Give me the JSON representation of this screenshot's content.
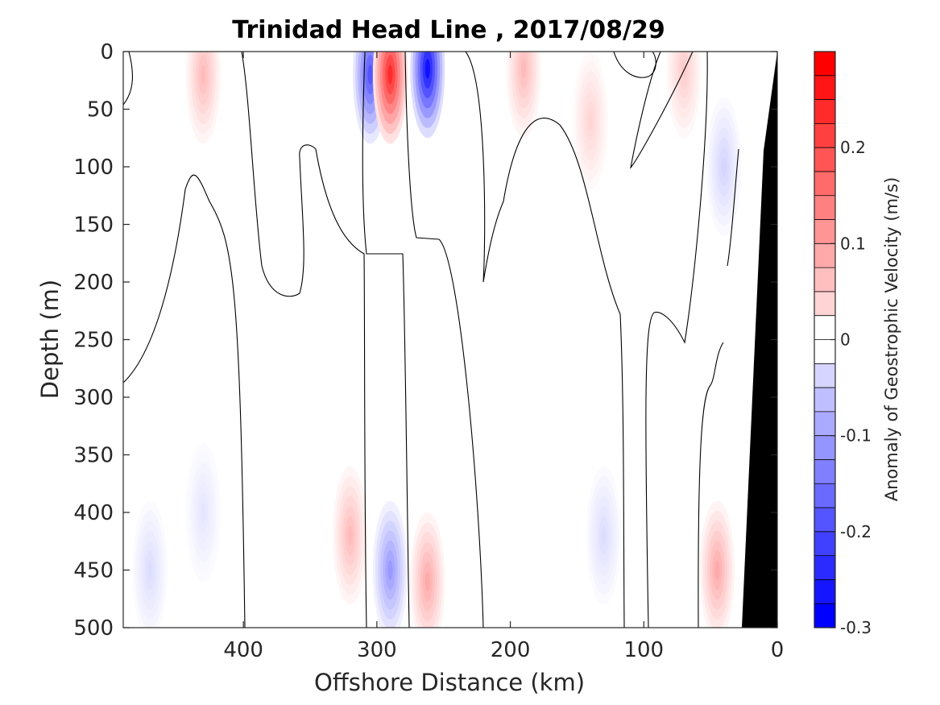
{
  "chart_data": {
    "type": "heatmap",
    "title": "Trinidad Head Line , 2017/08/29",
    "xlabel": "Offshore Distance (km)",
    "ylabel": "Depth (m)",
    "xlim": [
      490,
      0
    ],
    "ylim": [
      0,
      500
    ],
    "x_ticks": [
      "400",
      "300",
      "200",
      "100",
      "0"
    ],
    "y_ticks": [
      "0",
      "50",
      "100",
      "150",
      "200",
      "250",
      "300",
      "350",
      "400",
      "450",
      "500"
    ],
    "colorbar": {
      "label": "Anomaly of Geostrophic Velocity (m/s)",
      "range": [
        -0.3,
        0.3
      ],
      "ticks": [
        "0.2",
        "0.1",
        "0",
        "-0.1",
        "-0.2",
        "-0.3"
      ],
      "positive_color": "#ff0000",
      "negative_color": "#0000ff",
      "levels": 24
    },
    "grid": false,
    "features": [
      {
        "x": 430,
        "depth": 20,
        "value": 0.08
      },
      {
        "x": 305,
        "depth": 20,
        "value": -0.2
      },
      {
        "x": 290,
        "depth": 20,
        "value": 0.25
      },
      {
        "x": 262,
        "depth": 15,
        "value": -0.28
      },
      {
        "x": 190,
        "depth": 15,
        "value": 0.08
      },
      {
        "x": 140,
        "depth": 60,
        "value": 0.05
      },
      {
        "x": 70,
        "depth": 15,
        "value": 0.06
      },
      {
        "x": 40,
        "depth": 100,
        "value": -0.05
      },
      {
        "x": 290,
        "depth": 450,
        "value": -0.12
      },
      {
        "x": 262,
        "depth": 460,
        "value": 0.1
      },
      {
        "x": 320,
        "depth": 420,
        "value": 0.08
      },
      {
        "x": 45,
        "depth": 450,
        "value": 0.1
      },
      {
        "x": 470,
        "depth": 450,
        "value": -0.04
      },
      {
        "x": 130,
        "depth": 420,
        "value": -0.04
      },
      {
        "x": 430,
        "depth": 400,
        "value": -0.03
      }
    ],
    "bathymetry": [
      {
        "x": 0,
        "depth": 0
      },
      {
        "x": 20,
        "depth": 80
      },
      {
        "x": 25,
        "depth": 500
      }
    ]
  }
}
